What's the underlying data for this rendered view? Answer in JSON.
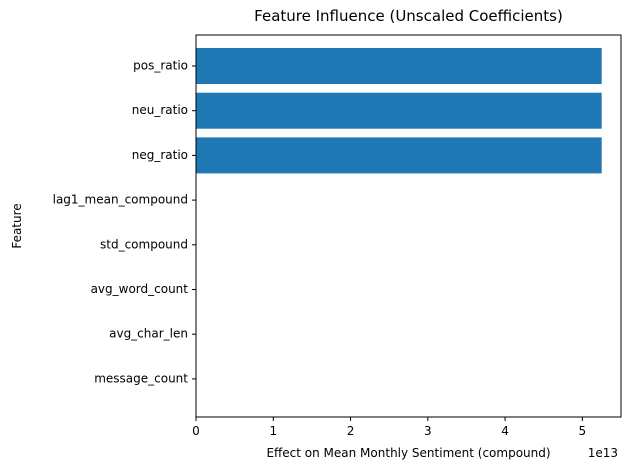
{
  "chart_data": {
    "type": "bar",
    "orientation": "horizontal",
    "title": "Feature Influence (Unscaled Coefficients)",
    "xlabel": "Effect on Mean Monthly Sentiment (compound)",
    "ylabel": "Feature",
    "x_scale_label": "1e13",
    "categories": [
      "pos_ratio",
      "neu_ratio",
      "neg_ratio",
      "lag1_mean_compound",
      "std_compound",
      "avg_word_count",
      "avg_char_len",
      "message_count"
    ],
    "values": [
      5.25,
      5.25,
      5.25,
      0,
      0,
      0,
      0,
      0
    ],
    "value_unit_multiplier": "1e13",
    "xlim": [
      0,
      5.5
    ],
    "xticks": [
      0,
      1,
      2,
      3,
      4,
      5
    ],
    "grid": false,
    "legend": "none",
    "bar_color": "#1f77b4"
  }
}
